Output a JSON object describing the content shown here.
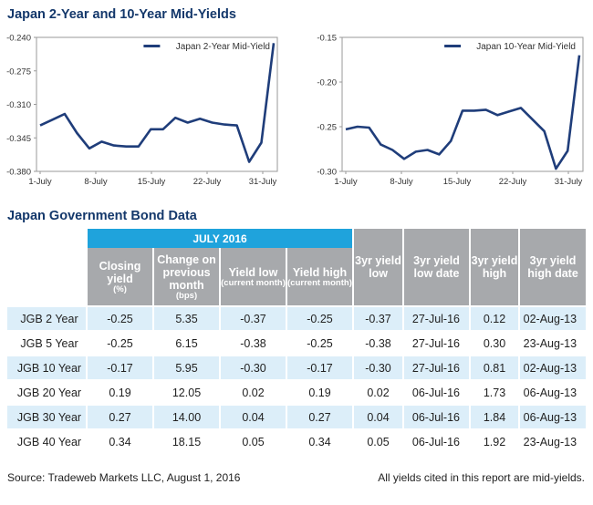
{
  "page": {
    "charts_title": "Japan 2-Year and 10-Year Mid-Yields",
    "table_title": "Japan Government Bond Data",
    "source_note": "Source: Tradeweb Markets LLC, August 1, 2016",
    "yields_note": "All yields cited in this report are mid-yields."
  },
  "chart_data": [
    {
      "type": "line",
      "legend": "Japan 2-Year Mid-Yield",
      "series": [
        {
          "name": "Japan 2-Year Mid-Yield",
          "color": "#1f3d7a",
          "values": [
            -0.332,
            -0.326,
            -0.32,
            -0.34,
            -0.356,
            -0.349,
            -0.353,
            -0.354,
            -0.354,
            -0.336,
            -0.336,
            -0.324,
            -0.329,
            -0.325,
            -0.329,
            -0.331,
            -0.332,
            -0.37,
            -0.35,
            -0.246
          ]
        }
      ],
      "x_tick_labels": [
        "1-July",
        "8-July",
        "15-July",
        "22-July",
        "31-July"
      ],
      "y_tick_labels": [
        "-0.240",
        "-0.275",
        "-0.310",
        "-0.345",
        "-0.380"
      ],
      "ylim": [
        -0.38,
        -0.24
      ],
      "legend_position": "top-right",
      "grid": false
    },
    {
      "type": "line",
      "legend": "Japan 10-Year Mid-Yield",
      "series": [
        {
          "name": "Japan 10-Year Mid-Yield",
          "color": "#1f3d7a",
          "values": [
            -0.253,
            -0.25,
            -0.251,
            -0.27,
            -0.276,
            -0.286,
            -0.278,
            -0.276,
            -0.281,
            -0.266,
            -0.232,
            -0.232,
            -0.231,
            -0.237,
            -0.233,
            -0.229,
            -0.242,
            -0.255,
            -0.297,
            -0.277,
            -0.17
          ]
        }
      ],
      "x_tick_labels": [
        "1-July",
        "8-July",
        "15-July",
        "22-July",
        "31-July"
      ],
      "y_tick_labels": [
        "-0.15",
        "-0.20",
        "-0.25",
        "-0.30"
      ],
      "ylim": [
        -0.3,
        -0.15
      ],
      "legend_position": "top-right",
      "grid": false
    }
  ],
  "table": {
    "group_header": "JULY 2016",
    "headers": [
      {
        "main": "Closing yield",
        "sub": "(%)"
      },
      {
        "main": "Change on previous month",
        "sub": "(bps)"
      },
      {
        "main": "Yield low",
        "sub": "(current month)"
      },
      {
        "main": "Yield high",
        "sub": "(current month)"
      },
      {
        "main": "3yr yield low",
        "sub": ""
      },
      {
        "main": "3yr yield low date",
        "sub": ""
      },
      {
        "main": "3yr yield high",
        "sub": ""
      },
      {
        "main": "3yr yield high date",
        "sub": ""
      }
    ],
    "rows": [
      {
        "label": "JGB 2 Year",
        "cells": [
          "-0.25",
          "5.35",
          "-0.37",
          "-0.25",
          "-0.37",
          "27-Jul-16",
          "0.12",
          "02-Aug-13"
        ]
      },
      {
        "label": "JGB 5 Year",
        "cells": [
          "-0.25",
          "6.15",
          "-0.38",
          "-0.25",
          "-0.38",
          "27-Jul-16",
          "0.30",
          "23-Aug-13"
        ]
      },
      {
        "label": "JGB 10 Year",
        "cells": [
          "-0.17",
          "5.95",
          "-0.30",
          "-0.17",
          "-0.30",
          "27-Jul-16",
          "0.81",
          "02-Aug-13"
        ]
      },
      {
        "label": "JGB 20 Year",
        "cells": [
          "0.19",
          "12.05",
          "0.02",
          "0.19",
          "0.02",
          "06-Jul-16",
          "1.73",
          "06-Aug-13"
        ]
      },
      {
        "label": "JGB 30 Year",
        "cells": [
          "0.27",
          "14.00",
          "0.04",
          "0.27",
          "0.04",
          "06-Jul-16",
          "1.84",
          "06-Aug-13"
        ]
      },
      {
        "label": "JGB 40 Year",
        "cells": [
          "0.34",
          "18.15",
          "0.05",
          "0.34",
          "0.05",
          "06-Jul-16",
          "1.92",
          "23-Aug-13"
        ]
      }
    ]
  }
}
